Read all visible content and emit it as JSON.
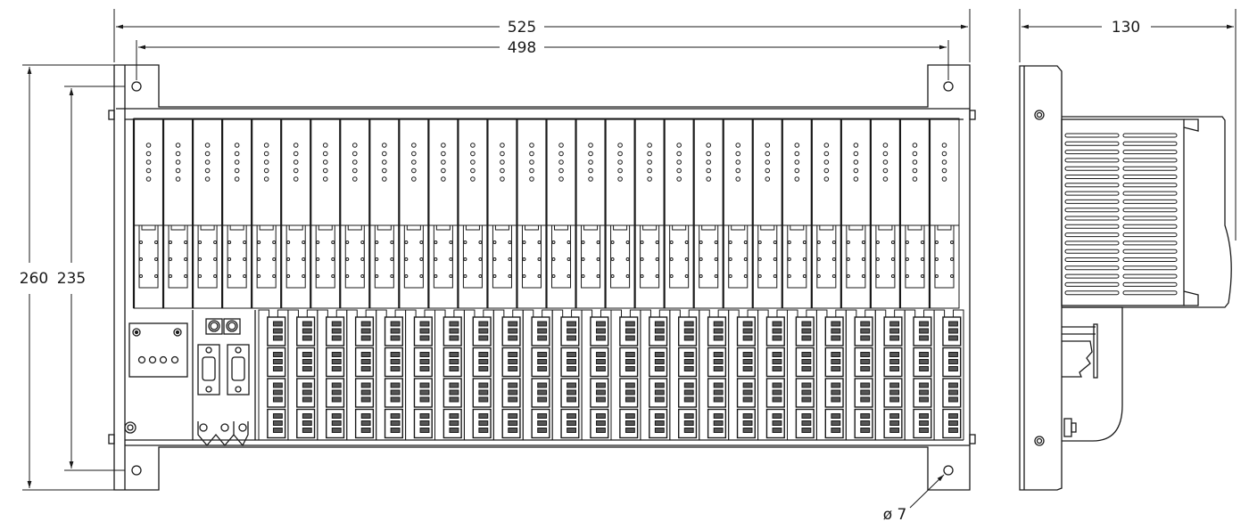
{
  "dimensions": {
    "overall_width": "525",
    "hole_spacing_width": "498",
    "overall_height": "260",
    "hole_spacing_height": "235",
    "depth": "130",
    "hole_diameter": "ø 7"
  },
  "views": [
    "front",
    "side"
  ],
  "front_view": {
    "module_count": 28,
    "terminal_columns": 24,
    "terminal_rows": 4,
    "leds_per_module": 5
  },
  "colors": {
    "line": "#1a1a1a",
    "background": "#ffffff"
  }
}
